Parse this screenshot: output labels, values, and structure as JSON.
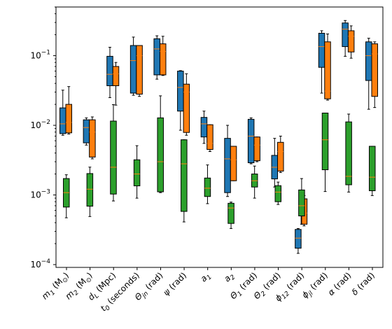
{
  "chart_data": {
    "type": "boxplot",
    "title": "",
    "xlabel": "",
    "ylabel": "",
    "yscale": "log",
    "ylim": [
      0.0001,
      0.5
    ],
    "y_ticks": [
      {
        "value": 0.0001,
        "base": "10",
        "exp": "−4"
      },
      {
        "value": 0.001,
        "base": "10",
        "exp": "−3"
      },
      {
        "value": 0.01,
        "base": "10",
        "exp": "−2"
      },
      {
        "value": 0.1,
        "base": "10",
        "exp": "−1"
      }
    ],
    "grid": false,
    "legend": "none",
    "median_color": "#ff7f0e",
    "categories": [
      {
        "main": "m",
        "sub": "1",
        "tail": " (M",
        "tailsub": "⊙",
        "end": ")"
      },
      {
        "main": "m",
        "sub": "2",
        "tail": " (M",
        "tailsub": "⊙",
        "end": ")"
      },
      {
        "main": "d",
        "sub": "L",
        "tail": " (Mpc)",
        "tailsub": "",
        "end": ""
      },
      {
        "main": "t",
        "sub": "0",
        "tail": " (seconds)",
        "tailsub": "",
        "end": ""
      },
      {
        "main": "Θ",
        "sub": "jn",
        "tail": " (rad)",
        "tailsub": "",
        "end": ""
      },
      {
        "main": "ψ",
        "sub": "",
        "tail": " (rad)",
        "tailsub": "",
        "end": ""
      },
      {
        "main": "a",
        "sub": "1",
        "tail": "",
        "tailsub": "",
        "end": ""
      },
      {
        "main": "a",
        "sub": "2",
        "tail": "",
        "tailsub": "",
        "end": ""
      },
      {
        "main": "Θ",
        "sub": "1",
        "tail": " (rad)",
        "tailsub": "",
        "end": ""
      },
      {
        "main": "Θ",
        "sub": "2",
        "tail": " (rad)",
        "tailsub": "",
        "end": ""
      },
      {
        "main": "ϕ",
        "sub": "12",
        "tail": " (rad)",
        "tailsub": "",
        "end": ""
      },
      {
        "main": "ϕ",
        "sub": "jl",
        "tail": " (rad)",
        "tailsub": "",
        "end": ""
      },
      {
        "main": "α",
        "sub": "",
        "tail": " (rad)",
        "tailsub": "",
        "end": ""
      },
      {
        "main": "δ",
        "sub": "",
        "tail": " (rad)",
        "tailsub": "",
        "end": ""
      }
    ],
    "series": [
      {
        "color": "#1f77b4",
        "boxes": [
          {
            "whislo": 0.0072,
            "q1": 0.0076,
            "med": 0.0105,
            "q3": 0.0178,
            "whishi": 0.032
          },
          {
            "whislo": 0.0052,
            "q1": 0.0056,
            "med": 0.0093,
            "q3": 0.012,
            "whishi": 0.0128
          },
          {
            "whislo": 0.025,
            "q1": 0.037,
            "med": 0.054,
            "q3": 0.098,
            "whishi": 0.132
          },
          {
            "whislo": 0.027,
            "q1": 0.029,
            "med": 0.085,
            "q3": 0.14,
            "whishi": 0.185
          },
          {
            "whislo": 0.046,
            "q1": 0.053,
            "med": 0.125,
            "q3": 0.175,
            "whishi": 0.193
          },
          {
            "whislo": 0.0085,
            "q1": 0.016,
            "med": 0.035,
            "q3": 0.06,
            "whishi": 0.061
          },
          {
            "whislo": 0.0055,
            "q1": 0.0068,
            "med": 0.0105,
            "q3": 0.013,
            "whishi": 0.016
          },
          {
            "whislo": 0.00095,
            "q1": 0.00108,
            "med": 0.0033,
            "q3": 0.0065,
            "whishi": 0.01
          },
          {
            "whislo": 0.0028,
            "q1": 0.0029,
            "med": 0.007,
            "q3": 0.0122,
            "whishi": 0.0128
          },
          {
            "whislo": 0.0013,
            "q1": 0.0017,
            "med": 0.0025,
            "q3": 0.0037,
            "whishi": 0.0065
          },
          {
            "whislo": 0.000145,
            "q1": 0.000172,
            "med": 0.00024,
            "q3": 0.00032,
            "whishi": 0.00033
          },
          {
            "whislo": 0.029,
            "q1": 0.068,
            "med": 0.135,
            "q3": 0.21,
            "whishi": 0.228
          },
          {
            "whislo": 0.098,
            "q1": 0.135,
            "med": 0.24,
            "q3": 0.295,
            "whishi": 0.32
          },
          {
            "whislo": 0.017,
            "q1": 0.044,
            "med": 0.1,
            "q3": 0.158,
            "whishi": 0.178
          }
        ]
      },
      {
        "color": "#ff7f0e",
        "boxes": [
          {
            "whislo": 0.0075,
            "q1": 0.0078,
            "med": 0.011,
            "q3": 0.02,
            "whishi": 0.036
          },
          {
            "whislo": 0.0033,
            "q1": 0.0035,
            "med": 0.008,
            "q3": 0.012,
            "whishi": 0.0132
          },
          {
            "whislo": 0.0195,
            "q1": 0.037,
            "med": 0.055,
            "q3": 0.07,
            "whishi": 0.08
          },
          {
            "whislo": 0.026,
            "q1": 0.028,
            "med": 0.1,
            "q3": 0.14,
            "whishi": 0.14
          },
          {
            "whislo": 0.052,
            "q1": 0.053,
            "med": 0.115,
            "q3": 0.148,
            "whishi": 0.19
          },
          {
            "whislo": 0.0072,
            "q1": 0.0079,
            "med": 0.03,
            "q3": 0.039,
            "whishi": 0.055
          },
          {
            "whislo": 0.0042,
            "q1": 0.0045,
            "med": 0.0055,
            "q3": 0.0102,
            "whishi": 0.0102
          },
          {
            "whislo": 0.0016,
            "q1": 0.0016,
            "med": 0.0032,
            "q3": 0.005,
            "whishi": 0.005
          },
          {
            "whislo": 0.003,
            "q1": 0.0031,
            "med": 0.0052,
            "q3": 0.0068,
            "whishi": 0.0068
          },
          {
            "whislo": 0.0021,
            "q1": 0.0022,
            "med": 0.0042,
            "q3": 0.0057,
            "whishi": 0.007
          },
          {
            "whislo": 0.00036,
            "q1": 0.00038,
            "med": 0.00055,
            "q3": 0.00088,
            "whishi": 0.00098
          },
          {
            "whislo": 0.023,
            "q1": 0.024,
            "med": 0.031,
            "q3": 0.158,
            "whishi": 0.205
          },
          {
            "whislo": 0.092,
            "q1": 0.113,
            "med": 0.19,
            "q3": 0.228,
            "whishi": 0.268
          },
          {
            "whislo": 0.018,
            "q1": 0.026,
            "med": 0.106,
            "q3": 0.148,
            "whishi": 0.158
          }
        ]
      },
      {
        "color": "#2ca02c",
        "boxes": [
          {
            "whislo": 0.00047,
            "q1": 0.00067,
            "med": 0.00108,
            "q3": 0.00172,
            "whishi": 0.00195
          },
          {
            "whislo": 0.00049,
            "q1": 0.00069,
            "med": 0.00121,
            "q3": 0.00203,
            "whishi": 0.00251
          },
          {
            "whislo": 0.00082,
            "q1": 0.00103,
            "med": 0.0025,
            "q3": 0.0115,
            "whishi": 0.0198
          },
          {
            "whislo": 0.0009,
            "q1": 0.00135,
            "med": 0.002,
            "q3": 0.0032,
            "whishi": 0.0051
          },
          {
            "whislo": 0.00108,
            "q1": 0.00111,
            "med": 0.003,
            "q3": 0.0128,
            "whishi": 0.0265
          },
          {
            "whislo": 0.00041,
            "q1": 0.00058,
            "med": 0.0028,
            "q3": 0.0062,
            "whishi": 0.0062
          },
          {
            "whislo": 0.00075,
            "q1": 0.00095,
            "med": 0.00125,
            "q3": 0.00175,
            "whishi": 0.0027
          },
          {
            "whislo": 0.00033,
            "q1": 0.00039,
            "med": 0.00065,
            "q3": 0.00076,
            "whishi": 0.00079
          },
          {
            "whislo": 0.0009,
            "q1": 0.0013,
            "med": 0.0016,
            "q3": 0.002,
            "whishi": 0.0026
          },
          {
            "whislo": 0.00073,
            "q1": 0.0008,
            "med": 0.0011,
            "q3": 0.00136,
            "whishi": 0.00153
          },
          {
            "whislo": 0.00038,
            "q1": 0.0005,
            "med": 0.0007,
            "q3": 0.00118,
            "whishi": 0.00172
          },
          {
            "whislo": 0.00112,
            "q1": 0.0023,
            "med": 0.0062,
            "q3": 0.015,
            "whishi": 0.015
          },
          {
            "whislo": 0.0011,
            "q1": 0.0014,
            "med": 0.00185,
            "q3": 0.0112,
            "whishi": 0.0145
          },
          {
            "whislo": 0.00098,
            "q1": 0.00115,
            "med": 0.0018,
            "q3": 0.005,
            "whishi": 0.005
          }
        ]
      }
    ]
  }
}
